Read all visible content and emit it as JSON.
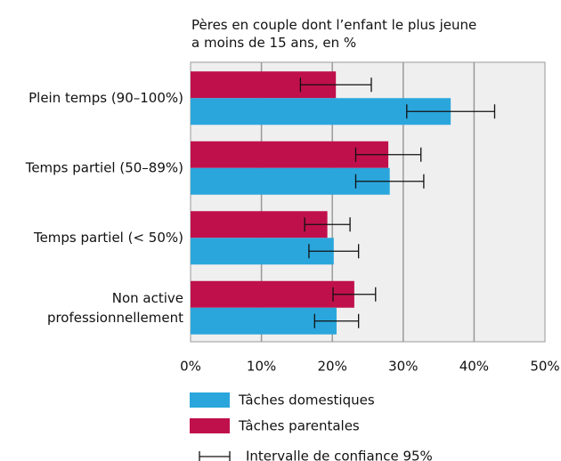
{
  "chart_data": {
    "type": "bar",
    "orientation": "horizontal",
    "title": "Pères en couple dont l’enfant le plus jeune\na moins de 15 ans, en %",
    "categories": [
      "Plein temps (90–100%)",
      "Temps partiel (50–89%)",
      "Temps partiel (< 50%)",
      "Non active\nprofessionnellement"
    ],
    "series": [
      {
        "name": "Tâches parentales",
        "color": "#c0104b",
        "values": [
          20.5,
          27.9,
          19.3,
          23.1
        ],
        "errors": [
          5,
          4.6,
          3.2,
          3
        ]
      },
      {
        "name": "Tâches domestiques",
        "color": "#2aa6dc",
        "values": [
          36.7,
          28.1,
          20.2,
          20.6
        ],
        "errors": [
          6.2,
          4.8,
          3.5,
          3.1
        ]
      }
    ],
    "legend_order": [
      1,
      0
    ],
    "error_label": "Intervalle de confiance 95%",
    "xlim": [
      0,
      50
    ],
    "xticks": [
      {
        "value": 0,
        "label": "0%"
      },
      {
        "value": 10,
        "label": "10%"
      },
      {
        "value": 20,
        "label": "20%"
      },
      {
        "value": 30,
        "label": "30%"
      },
      {
        "value": 40,
        "label": "40%"
      },
      {
        "value": 50,
        "label": "50%"
      }
    ],
    "grid": true
  }
}
